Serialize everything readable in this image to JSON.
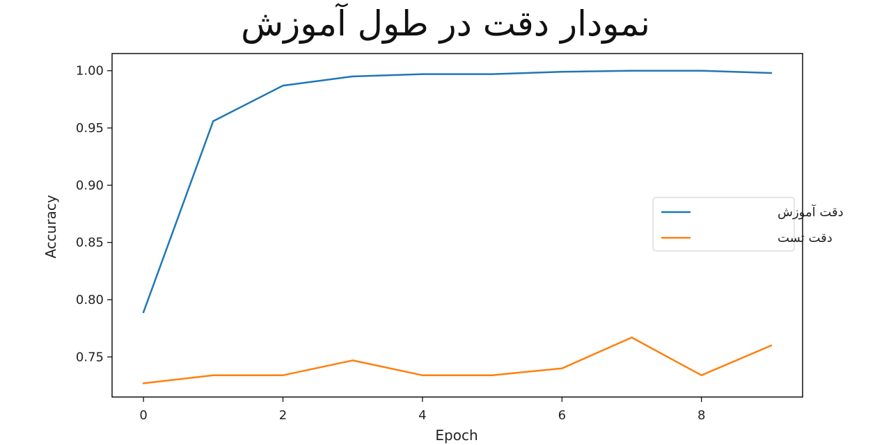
{
  "chart_data": {
    "type": "line",
    "title": "نمودار دقت در طول آموزش",
    "xlabel": "Epoch",
    "ylabel": "Accuracy",
    "x": [
      0,
      1,
      2,
      3,
      4,
      5,
      6,
      7,
      8,
      9
    ],
    "xlim": [
      -0.45,
      9.45
    ],
    "ylim": [
      0.715,
      1.015
    ],
    "xticks": [
      0,
      2,
      4,
      6,
      8
    ],
    "xtick_labels": [
      "0",
      "2",
      "4",
      "6",
      "8"
    ],
    "yticks": [
      0.75,
      0.8,
      0.85,
      0.9,
      0.95,
      1.0
    ],
    "ytick_labels": [
      "0.75",
      "0.80",
      "0.85",
      "0.90",
      "0.95",
      "1.00"
    ],
    "grid": false,
    "legend_position": "center-right",
    "series": [
      {
        "name": "دقت آموزش",
        "color": "#1f77b4",
        "values": [
          0.789,
          0.956,
          0.987,
          0.995,
          0.997,
          0.997,
          0.999,
          1.0,
          1.0,
          0.998
        ]
      },
      {
        "name": "دقت تست",
        "color": "#ff7f0e",
        "values": [
          0.727,
          0.734,
          0.734,
          0.747,
          0.734,
          0.734,
          0.74,
          0.767,
          0.734,
          0.76
        ]
      }
    ]
  }
}
